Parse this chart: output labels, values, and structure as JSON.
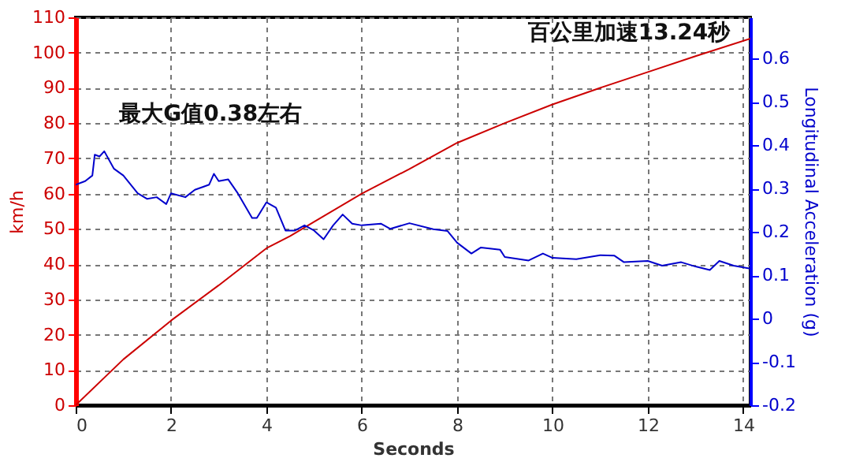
{
  "chart_data": {
    "type": "line",
    "xlabel": "Seconds",
    "ylabel": "km/h",
    "y2label": "Longitudinal Acceleration (g)",
    "annotations": [
      "百公里加速13.24秒",
      "最大G值0.38左右"
    ],
    "xlim": [
      0,
      14.15
    ],
    "xticks": [
      0,
      2,
      4,
      6,
      8,
      10,
      12,
      14
    ],
    "ylim": [
      0,
      110
    ],
    "yticks": [
      0,
      10,
      20,
      30,
      40,
      50,
      60,
      70,
      80,
      90,
      100,
      110
    ],
    "y2lim": [
      -0.2,
      0.695
    ],
    "y2ticks": [
      -0.2,
      -0.1,
      0,
      0.1,
      0.2,
      0.3,
      0.4,
      0.5,
      0.6
    ],
    "grid": true,
    "marker": "none",
    "line_style": "solid",
    "series": [
      {
        "color": "#cc0000",
        "x": [
          0,
          1,
          2,
          3,
          4,
          4.5,
          5,
          6,
          7,
          8,
          9,
          10,
          11,
          12,
          13,
          14.15
        ],
        "values": [
          0,
          13,
          24,
          34,
          44.5,
          48,
          52,
          60,
          67,
          74.4,
          80,
          85.3,
          90,
          94.5,
          99,
          104
        ]
      },
      {
        "color": "#0000cc",
        "axis": "y2",
        "x": [
          0,
          0.2,
          0.35,
          0.4,
          0.5,
          0.6,
          0.8,
          1.0,
          1.3,
          1.5,
          1.7,
          1.9,
          2.0,
          2.3,
          2.5,
          2.8,
          2.9,
          3.0,
          3.2,
          3.4,
          3.7,
          3.8,
          4.0,
          4.2,
          4.4,
          4.6,
          4.8,
          5.0,
          5.2,
          5.4,
          5.6,
          5.8,
          6.0,
          6.4,
          6.6,
          7.0,
          7.5,
          7.8,
          8.0,
          8.3,
          8.5,
          8.9,
          9.0,
          9.5,
          9.8,
          10.0,
          10.5,
          11.0,
          11.3,
          11.5,
          12.0,
          12.3,
          12.7,
          13.0,
          13.3,
          13.5,
          13.8,
          14.15
        ],
        "values": [
          0.309,
          0.317,
          0.33,
          0.378,
          0.374,
          0.386,
          0.346,
          0.33,
          0.289,
          0.276,
          0.28,
          0.264,
          0.289,
          0.28,
          0.297,
          0.309,
          0.334,
          0.317,
          0.321,
          0.289,
          0.232,
          0.232,
          0.268,
          0.256,
          0.203,
          0.203,
          0.215,
          0.203,
          0.183,
          0.215,
          0.24,
          0.219,
          0.215,
          0.219,
          0.207,
          0.22,
          0.206,
          0.202,
          0.175,
          0.15,
          0.164,
          0.159,
          0.142,
          0.134,
          0.15,
          0.14,
          0.137,
          0.146,
          0.145,
          0.13,
          0.133,
          0.122,
          0.13,
          0.12,
          0.112,
          0.133,
          0.122,
          0.115
        ]
      }
    ]
  }
}
